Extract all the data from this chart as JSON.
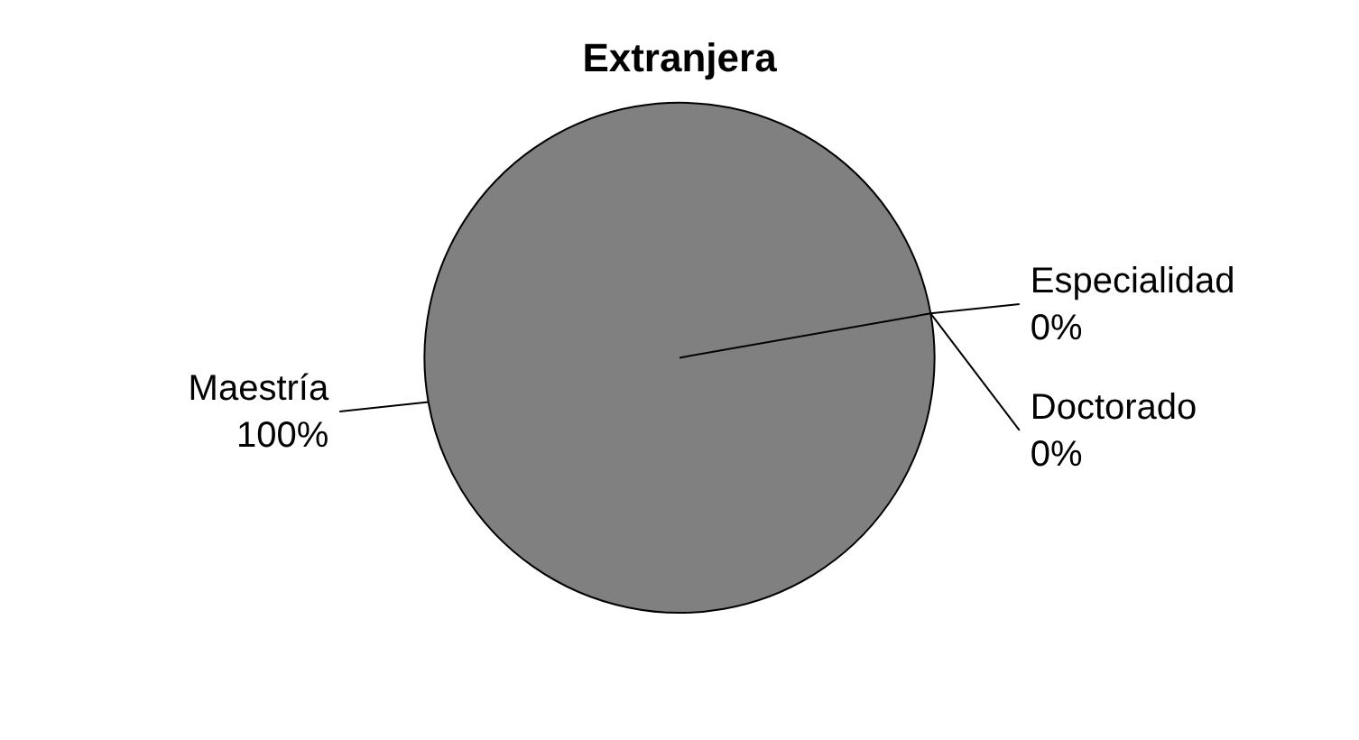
{
  "chart_data": {
    "type": "pie",
    "title": "Extranjera",
    "categories": [
      "Especialidad",
      "Doctorado",
      "Maestría"
    ],
    "values": [
      0,
      0,
      100
    ],
    "colors": [
      "#c0c0c0",
      "#606060",
      "#808080"
    ],
    "value_labels": [
      "0%",
      "0%",
      "100%"
    ],
    "legend": false
  }
}
